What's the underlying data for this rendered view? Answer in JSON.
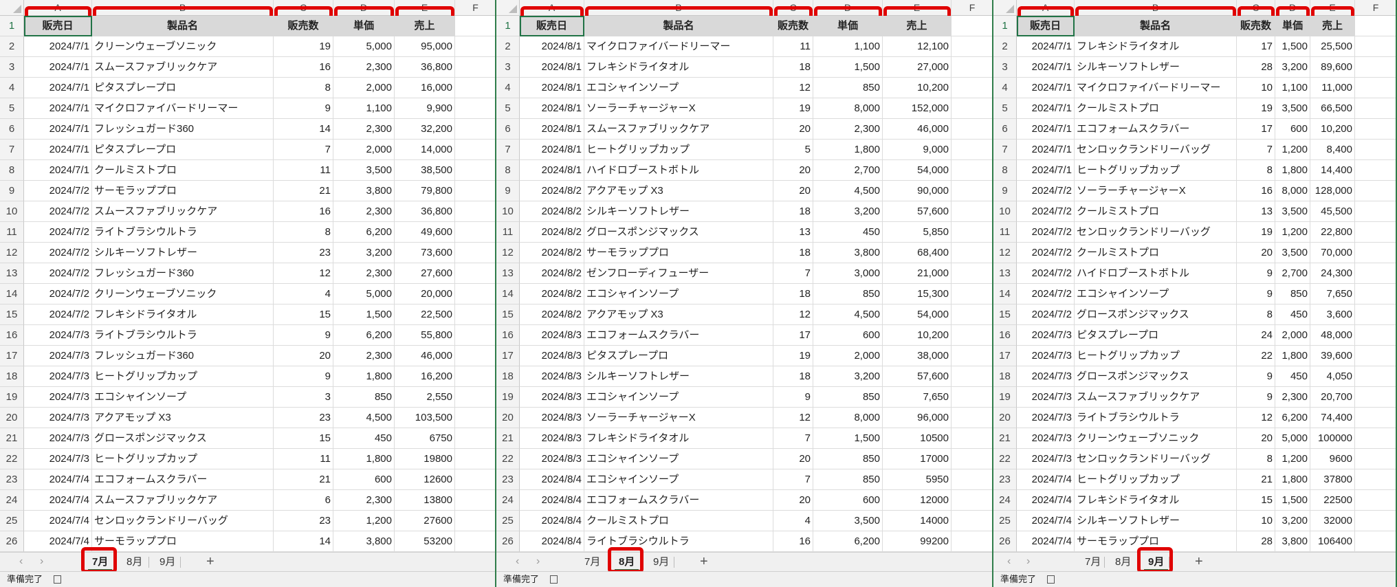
{
  "column_letters": [
    "A",
    "B",
    "C",
    "D",
    "E",
    "F"
  ],
  "headers": [
    "販売日",
    "製品名",
    "販売数",
    "単価",
    "売上"
  ],
  "sheet_tabs": [
    "7月",
    "8月",
    "9月"
  ],
  "add_sheet_label": "+",
  "nav_prev": "‹",
  "nav_next": "›",
  "status_text": "準備完了",
  "accent_color": "#217346",
  "highlight_color": "#e00000",
  "panels": [
    {
      "active_tab": 0,
      "rows": [
        [
          "2024/7/1",
          "クリーンウェーブソニック",
          "19",
          "5,000",
          "95,000"
        ],
        [
          "2024/7/1",
          "スムースファブリックケア",
          "16",
          "2,300",
          "36,800"
        ],
        [
          "2024/7/1",
          "ピタスプレープロ",
          "8",
          "2,000",
          "16,000"
        ],
        [
          "2024/7/1",
          "マイクロファイバードリーマー",
          "9",
          "1,100",
          "9,900"
        ],
        [
          "2024/7/1",
          "フレッシュガード360",
          "14",
          "2,300",
          "32,200"
        ],
        [
          "2024/7/1",
          "ピタスプレープロ",
          "7",
          "2,000",
          "14,000"
        ],
        [
          "2024/7/1",
          "クールミストプロ",
          "11",
          "3,500",
          "38,500"
        ],
        [
          "2024/7/2",
          "サーモラッププロ",
          "21",
          "3,800",
          "79,800"
        ],
        [
          "2024/7/2",
          "スムースファブリックケア",
          "16",
          "2,300",
          "36,800"
        ],
        [
          "2024/7/2",
          "ライトブラシウルトラ",
          "8",
          "6,200",
          "49,600"
        ],
        [
          "2024/7/2",
          "シルキーソフトレザー",
          "23",
          "3,200",
          "73,600"
        ],
        [
          "2024/7/2",
          "フレッシュガード360",
          "12",
          "2,300",
          "27,600"
        ],
        [
          "2024/7/2",
          "クリーンウェーブソニック",
          "4",
          "5,000",
          "20,000"
        ],
        [
          "2024/7/2",
          "フレキシドライタオル",
          "15",
          "1,500",
          "22,500"
        ],
        [
          "2024/7/3",
          "ライトブラシウルトラ",
          "9",
          "6,200",
          "55,800"
        ],
        [
          "2024/7/3",
          "フレッシュガード360",
          "20",
          "2,300",
          "46,000"
        ],
        [
          "2024/7/3",
          "ヒートグリップカップ",
          "9",
          "1,800",
          "16,200"
        ],
        [
          "2024/7/3",
          "エコシャインソープ",
          "3",
          "850",
          "2,550"
        ],
        [
          "2024/7/3",
          "アクアモップ X3",
          "23",
          "4,500",
          "103,500"
        ],
        [
          "2024/7/3",
          "グロースポンジマックス",
          "15",
          "450",
          "6750"
        ],
        [
          "2024/7/3",
          "ヒートグリップカップ",
          "11",
          "1,800",
          "19800"
        ],
        [
          "2024/7/4",
          "エコフォームスクラバー",
          "21",
          "600",
          "12600"
        ],
        [
          "2024/7/4",
          "スムースファブリックケア",
          "6",
          "2,300",
          "13800"
        ],
        [
          "2024/7/4",
          "センロックランドリーバッグ",
          "23",
          "1,200",
          "27600"
        ],
        [
          "2024/7/4",
          "サーモラッププロ",
          "14",
          "3,800",
          "53200"
        ]
      ]
    },
    {
      "active_tab": 1,
      "rows": [
        [
          "2024/8/1",
          "マイクロファイバードリーマー",
          "11",
          "1,100",
          "12,100"
        ],
        [
          "2024/8/1",
          "フレキシドライタオル",
          "18",
          "1,500",
          "27,000"
        ],
        [
          "2024/8/1",
          "エコシャインソープ",
          "12",
          "850",
          "10,200"
        ],
        [
          "2024/8/1",
          "ソーラーチャージャーX",
          "19",
          "8,000",
          "152,000"
        ],
        [
          "2024/8/1",
          "スムースファブリックケア",
          "20",
          "2,300",
          "46,000"
        ],
        [
          "2024/8/1",
          "ヒートグリップカップ",
          "5",
          "1,800",
          "9,000"
        ],
        [
          "2024/8/1",
          "ハイドロブーストボトル",
          "20",
          "2,700",
          "54,000"
        ],
        [
          "2024/8/2",
          "アクアモップ X3",
          "20",
          "4,500",
          "90,000"
        ],
        [
          "2024/8/2",
          "シルキーソフトレザー",
          "18",
          "3,200",
          "57,600"
        ],
        [
          "2024/8/2",
          "グロースポンジマックス",
          "13",
          "450",
          "5,850"
        ],
        [
          "2024/8/2",
          "サーモラッププロ",
          "18",
          "3,800",
          "68,400"
        ],
        [
          "2024/8/2",
          "ゼンフローディフューザー",
          "7",
          "3,000",
          "21,000"
        ],
        [
          "2024/8/2",
          "エコシャインソープ",
          "18",
          "850",
          "15,300"
        ],
        [
          "2024/8/2",
          "アクアモップ X3",
          "12",
          "4,500",
          "54,000"
        ],
        [
          "2024/8/3",
          "エコフォームスクラバー",
          "17",
          "600",
          "10,200"
        ],
        [
          "2024/8/3",
          "ピタスプレープロ",
          "19",
          "2,000",
          "38,000"
        ],
        [
          "2024/8/3",
          "シルキーソフトレザー",
          "18",
          "3,200",
          "57,600"
        ],
        [
          "2024/8/3",
          "エコシャインソープ",
          "9",
          "850",
          "7,650"
        ],
        [
          "2024/8/3",
          "ソーラーチャージャーX",
          "12",
          "8,000",
          "96,000"
        ],
        [
          "2024/8/3",
          "フレキシドライタオル",
          "7",
          "1,500",
          "10500"
        ],
        [
          "2024/8/3",
          "エコシャインソープ",
          "20",
          "850",
          "17000"
        ],
        [
          "2024/8/4",
          "エコシャインソープ",
          "7",
          "850",
          "5950"
        ],
        [
          "2024/8/4",
          "エコフォームスクラバー",
          "20",
          "600",
          "12000"
        ],
        [
          "2024/8/4",
          "クールミストプロ",
          "4",
          "3,500",
          "14000"
        ],
        [
          "2024/8/4",
          "ライトブラシウルトラ",
          "16",
          "6,200",
          "99200"
        ]
      ]
    },
    {
      "active_tab": 2,
      "rows": [
        [
          "2024/7/1",
          "フレキシドライタオル",
          "17",
          "1,500",
          "25,500"
        ],
        [
          "2024/7/1",
          "シルキーソフトレザー",
          "28",
          "3,200",
          "89,600"
        ],
        [
          "2024/7/1",
          "マイクロファイバードリーマー",
          "10",
          "1,100",
          "11,000"
        ],
        [
          "2024/7/1",
          "クールミストプロ",
          "19",
          "3,500",
          "66,500"
        ],
        [
          "2024/7/1",
          "エコフォームスクラバー",
          "17",
          "600",
          "10,200"
        ],
        [
          "2024/7/1",
          "センロックランドリーバッグ",
          "7",
          "1,200",
          "8,400"
        ],
        [
          "2024/7/1",
          "ヒートグリップカップ",
          "8",
          "1,800",
          "14,400"
        ],
        [
          "2024/7/2",
          "ソーラーチャージャーX",
          "16",
          "8,000",
          "128,000"
        ],
        [
          "2024/7/2",
          "クールミストプロ",
          "13",
          "3,500",
          "45,500"
        ],
        [
          "2024/7/2",
          "センロックランドリーバッグ",
          "19",
          "1,200",
          "22,800"
        ],
        [
          "2024/7/2",
          "クールミストプロ",
          "20",
          "3,500",
          "70,000"
        ],
        [
          "2024/7/2",
          "ハイドロブーストボトル",
          "9",
          "2,700",
          "24,300"
        ],
        [
          "2024/7/2",
          "エコシャインソープ",
          "9",
          "850",
          "7,650"
        ],
        [
          "2024/7/2",
          "グロースポンジマックス",
          "8",
          "450",
          "3,600"
        ],
        [
          "2024/7/3",
          "ピタスプレープロ",
          "24",
          "2,000",
          "48,000"
        ],
        [
          "2024/7/3",
          "ヒートグリップカップ",
          "22",
          "1,800",
          "39,600"
        ],
        [
          "2024/7/3",
          "グロースポンジマックス",
          "9",
          "450",
          "4,050"
        ],
        [
          "2024/7/3",
          "スムースファブリックケア",
          "9",
          "2,300",
          "20,700"
        ],
        [
          "2024/7/3",
          "ライトブラシウルトラ",
          "12",
          "6,200",
          "74,400"
        ],
        [
          "2024/7/3",
          "クリーンウェーブソニック",
          "20",
          "5,000",
          "100000"
        ],
        [
          "2024/7/3",
          "センロックランドリーバッグ",
          "8",
          "1,200",
          "9600"
        ],
        [
          "2024/7/4",
          "ヒートグリップカップ",
          "21",
          "1,800",
          "37800"
        ],
        [
          "2024/7/4",
          "フレキシドライタオル",
          "15",
          "1,500",
          "22500"
        ],
        [
          "2024/7/4",
          "シルキーソフトレザー",
          "10",
          "3,200",
          "32000"
        ],
        [
          "2024/7/4",
          "サーモラッププロ",
          "28",
          "3,800",
          "106400"
        ]
      ]
    }
  ]
}
